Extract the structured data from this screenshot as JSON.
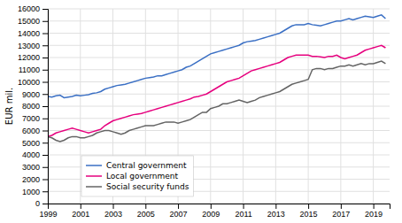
{
  "chart_data": {
    "type": "line",
    "ylabel": "EUR mil.",
    "x": [
      1999.0,
      1999.25,
      1999.5,
      1999.75,
      2000.0,
      2000.25,
      2000.5,
      2000.75,
      2001.0,
      2001.25,
      2001.5,
      2001.75,
      2002.0,
      2002.25,
      2002.5,
      2002.75,
      2003.0,
      2003.25,
      2003.5,
      2003.75,
      2004.0,
      2004.25,
      2004.5,
      2004.75,
      2005.0,
      2005.25,
      2005.5,
      2005.75,
      2006.0,
      2006.25,
      2006.5,
      2006.75,
      2007.0,
      2007.25,
      2007.5,
      2007.75,
      2008.0,
      2008.25,
      2008.5,
      2008.75,
      2009.0,
      2009.25,
      2009.5,
      2009.75,
      2010.0,
      2010.25,
      2010.5,
      2010.75,
      2011.0,
      2011.25,
      2011.5,
      2011.75,
      2012.0,
      2012.25,
      2012.5,
      2012.75,
      2013.0,
      2013.25,
      2013.5,
      2013.75,
      2014.0,
      2014.25,
      2014.5,
      2014.75,
      2015.0,
      2015.25,
      2015.5,
      2015.75,
      2016.0,
      2016.25,
      2016.5,
      2016.75,
      2017.0,
      2017.25,
      2017.5,
      2017.75,
      2018.0,
      2018.25,
      2018.5,
      2018.75,
      2019.0,
      2019.25,
      2019.5,
      2019.75
    ],
    "series": [
      {
        "name": "Central government",
        "color": "#3a6fc4",
        "values": [
          8800,
          8750,
          8850,
          8900,
          8700,
          8750,
          8800,
          8900,
          8850,
          8900,
          8950,
          9050,
          9100,
          9200,
          9400,
          9500,
          9600,
          9700,
          9750,
          9800,
          9900,
          10000,
          10100,
          10200,
          10300,
          10350,
          10400,
          10500,
          10500,
          10600,
          10700,
          10800,
          10900,
          11000,
          11200,
          11300,
          11500,
          11700,
          11900,
          12100,
          12300,
          12400,
          12500,
          12600,
          12700,
          12800,
          12900,
          13000,
          13200,
          13300,
          13350,
          13400,
          13500,
          13600,
          13700,
          13800,
          13900,
          14000,
          14200,
          14400,
          14600,
          14700,
          14700,
          14700,
          14800,
          14700,
          14650,
          14600,
          14700,
          14800,
          14900,
          15000,
          15000,
          15100,
          15200,
          15100,
          15200,
          15300,
          15400,
          15350,
          15300,
          15400,
          15500,
          15200
        ]
      },
      {
        "name": "Local government",
        "color": "#e6007e",
        "values": [
          5500,
          5600,
          5800,
          5900,
          6000,
          6100,
          6200,
          6100,
          6000,
          5900,
          5800,
          5900,
          6000,
          6100,
          6400,
          6600,
          6800,
          6900,
          7000,
          7100,
          7200,
          7300,
          7350,
          7400,
          7500,
          7600,
          7700,
          7800,
          7900,
          8000,
          8100,
          8200,
          8300,
          8400,
          8500,
          8600,
          8750,
          8800,
          8900,
          9000,
          9200,
          9400,
          9600,
          9800,
          10000,
          10100,
          10200,
          10300,
          10500,
          10700,
          10900,
          11000,
          11100,
          11200,
          11300,
          11400,
          11500,
          11600,
          11800,
          12000,
          12100,
          12200,
          12200,
          12200,
          12200,
          12100,
          12100,
          12050,
          12000,
          12100,
          12100,
          12200,
          12000,
          11900,
          12000,
          12100,
          12200,
          12400,
          12600,
          12700,
          12800,
          12900,
          13000,
          12800
        ]
      },
      {
        "name": "Social security funds",
        "color": "#646464",
        "values": [
          5500,
          5400,
          5200,
          5100,
          5200,
          5400,
          5500,
          5500,
          5400,
          5400,
          5500,
          5600,
          5800,
          5900,
          6000,
          6000,
          5900,
          5800,
          5700,
          5800,
          6000,
          6100,
          6200,
          6300,
          6400,
          6400,
          6400,
          6500,
          6600,
          6700,
          6700,
          6700,
          6600,
          6700,
          6800,
          6900,
          7100,
          7300,
          7500,
          7500,
          7800,
          7900,
          8000,
          8200,
          8200,
          8300,
          8400,
          8500,
          8400,
          8300,
          8400,
          8500,
          8700,
          8800,
          8900,
          9000,
          9100,
          9200,
          9400,
          9600,
          9800,
          9900,
          10000,
          10100,
          10200,
          11000,
          11100,
          11100,
          11000,
          11100,
          11100,
          11200,
          11300,
          11300,
          11400,
          11300,
          11400,
          11500,
          11400,
          11500,
          11500,
          11600,
          11700,
          11500
        ]
      }
    ],
    "xlim": [
      1999,
      2020
    ],
    "ylim": [
      0,
      16000
    ],
    "xticks": [
      1999,
      2001,
      2003,
      2005,
      2007,
      2009,
      2011,
      2013,
      2015,
      2017,
      2019
    ],
    "yticks": [
      0,
      1000,
      2000,
      3000,
      4000,
      5000,
      6000,
      7000,
      8000,
      9000,
      10000,
      11000,
      12000,
      13000,
      14000,
      15000,
      16000
    ],
    "grid": true,
    "legend": "lower left"
  }
}
